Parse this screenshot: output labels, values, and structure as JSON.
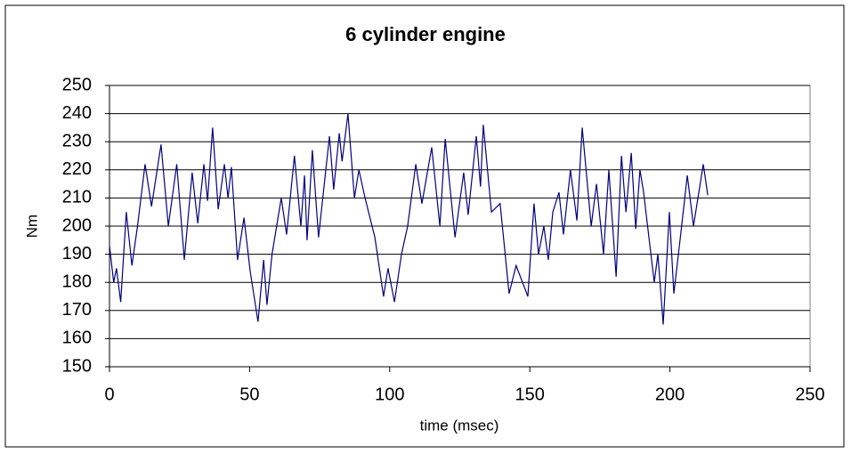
{
  "chart_data": {
    "type": "line",
    "title": "6 cylinder engine",
    "xlabel": "time (msec)",
    "ylabel": "Nm",
    "xlim": [
      0,
      250
    ],
    "ylim": [
      150,
      250
    ],
    "xticks": [
      0,
      50,
      100,
      150,
      200,
      250
    ],
    "yticks": [
      150,
      160,
      170,
      180,
      190,
      200,
      210,
      220,
      230,
      240,
      250
    ],
    "grid": true,
    "series": [
      {
        "name": "Nm",
        "color": "#000080",
        "x": [
          0,
          1.5,
          2.5,
          4,
          6,
          8,
          10,
          12.7,
          15,
          18.4,
          21,
          24,
          26.7,
          29.5,
          31.5,
          33.7,
          35,
          36.8,
          38.8,
          41,
          42.3,
          43.5,
          45.7,
          48,
          50.2,
          53,
          55,
          56.2,
          58,
          61.3,
          63.2,
          66,
          68.3,
          69.6,
          70.5,
          72.4,
          74.6,
          78.5,
          80,
          82,
          83,
          85.1,
          87.4,
          89,
          91.2,
          94.7,
          97.8,
          99.4,
          101.7,
          104.2,
          106.4,
          109.3,
          111.5,
          115,
          117.9,
          119.8,
          123.3,
          126.4,
          128,
          130.9,
          132.4,
          133.4,
          136.3,
          139.4,
          142.6,
          145.1,
          149.3,
          151.5,
          153.1,
          155,
          156.6,
          158.2,
          160.4,
          162,
          164.5,
          166.8,
          168.7,
          171.9,
          173.8,
          176.3,
          178.2,
          180.8,
          182.7,
          184.3,
          186.2,
          187.8,
          189.3,
          190.6,
          194.4,
          195.7,
          197.6,
          199.8,
          201.4,
          203.6,
          206.2,
          208.4,
          211.9,
          213.5
        ],
        "values": [
          193,
          180,
          185,
          173,
          205,
          186,
          200,
          222,
          207,
          229,
          200,
          222,
          188,
          219,
          201,
          222,
          209,
          235,
          206,
          222,
          210,
          221,
          188,
          203,
          184,
          166,
          188,
          172,
          190,
          210,
          197,
          225,
          200,
          218,
          195,
          227,
          196,
          232,
          213,
          233,
          223,
          240,
          210,
          220,
          210,
          196,
          175,
          185,
          173,
          190,
          200,
          222,
          208,
          228,
          200,
          231,
          196,
          219,
          204,
          232,
          214,
          236,
          205,
          208,
          176,
          186,
          175,
          208,
          190,
          200,
          188,
          205,
          212,
          197,
          220,
          202,
          235,
          200,
          215,
          190,
          220,
          182,
          225,
          205,
          226,
          199,
          220,
          212,
          180,
          190,
          165,
          205,
          176,
          195,
          218,
          200,
          222,
          211
        ]
      }
    ]
  }
}
